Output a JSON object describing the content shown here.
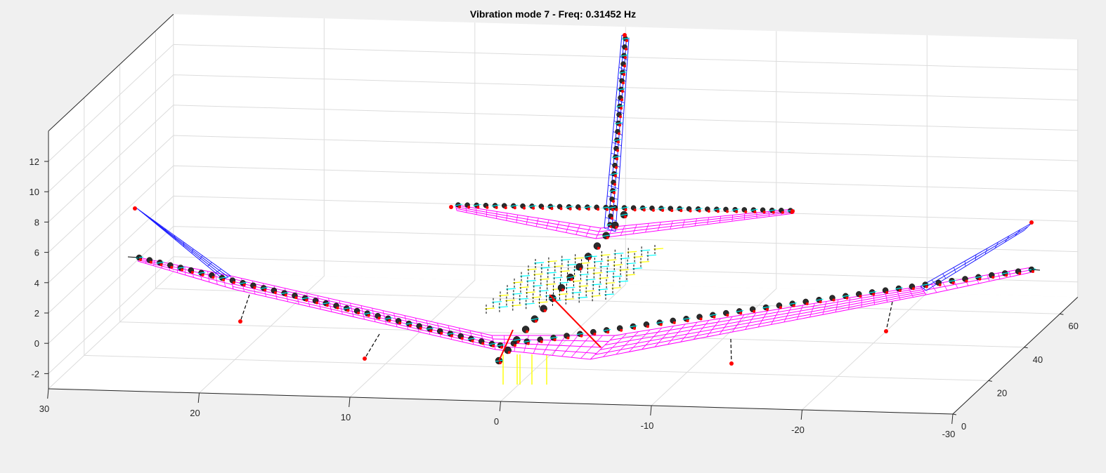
{
  "chart_data": {
    "type": "3d-mesh",
    "title": "Vibration mode 7 - Freq: 0.31452 Hz",
    "xlabel": "",
    "ylabel": "",
    "zlabel": "",
    "x_ticks": [
      30,
      20,
      10,
      0,
      -10,
      -20,
      -30
    ],
    "y_ticks": [
      0,
      20,
      40,
      60
    ],
    "z_ticks": [
      -2,
      0,
      2,
      4,
      6,
      8,
      10,
      12
    ],
    "xlim": [
      30,
      -30
    ],
    "ylim": [
      0,
      70
    ],
    "zlim": [
      -3,
      14
    ],
    "grid": true,
    "colors": {
      "wing_mesh": "#ff00ff",
      "tail_mesh": "#1a1aff",
      "aero_mesh": "#00ffff",
      "forces": "#ffff00",
      "nodes": "#ff0000",
      "beam": "#000000",
      "connector": "#ff0000"
    }
  }
}
